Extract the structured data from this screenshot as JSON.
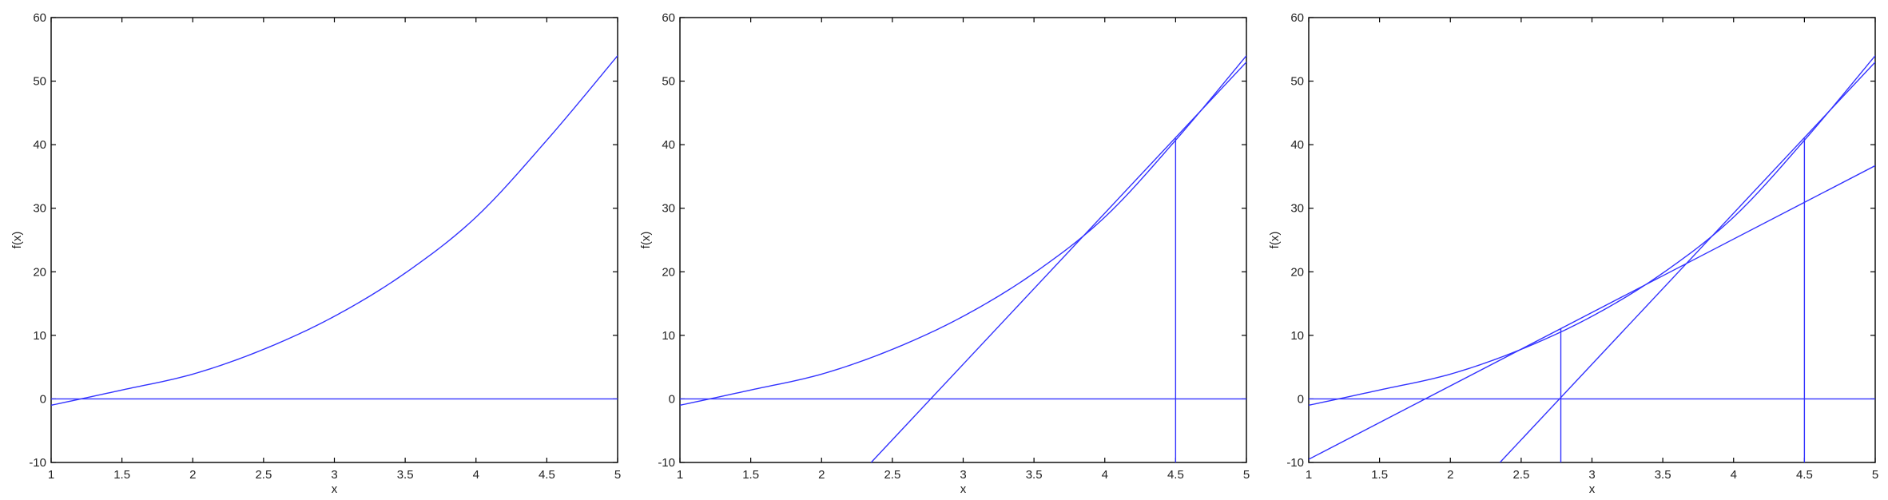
{
  "chart_data": [
    {
      "type": "line",
      "xlabel": "x",
      "ylabel": "f(x)",
      "xlim": [
        1,
        5
      ],
      "ylim": [
        -10,
        60
      ],
      "x_ticks": [
        "1",
        "1.5",
        "2",
        "2.5",
        "3",
        "3.5",
        "4",
        "4.5",
        "5"
      ],
      "y_ticks": [
        "-10",
        "0",
        "10",
        "20",
        "30",
        "40",
        "50",
        "60"
      ],
      "line_color": "#3333ff",
      "series": [
        {
          "kind": "curve",
          "x": [
            1,
            1.5,
            2,
            2.5,
            3,
            3.5,
            4,
            4.5,
            5
          ],
          "y": [
            -1,
            1.4,
            3.9,
            7.8,
            13,
            19.8,
            28.6,
            40.7,
            54
          ]
        },
        {
          "kind": "segment",
          "x": [
            1,
            5
          ],
          "y": [
            0,
            0
          ]
        }
      ]
    },
    {
      "type": "line",
      "xlabel": "x",
      "ylabel": "f(x)",
      "xlim": [
        1,
        5
      ],
      "ylim": [
        -10,
        60
      ],
      "x_ticks": [
        "1",
        "1.5",
        "2",
        "2.5",
        "3",
        "3.5",
        "4",
        "4.5",
        "5"
      ],
      "y_ticks": [
        "-10",
        "0",
        "10",
        "20",
        "30",
        "40",
        "50",
        "60"
      ],
      "line_color": "#3333ff",
      "series": [
        {
          "kind": "curve",
          "x": [
            1,
            1.5,
            2,
            2.5,
            3,
            3.5,
            4,
            4.5,
            5
          ],
          "y": [
            -1,
            1.4,
            3.9,
            7.8,
            13,
            19.8,
            28.6,
            40.7,
            54
          ]
        },
        {
          "kind": "segment",
          "x": [
            1,
            5
          ],
          "y": [
            0,
            0
          ]
        },
        {
          "kind": "segment",
          "x": [
            2.35,
            5
          ],
          "y": [
            -10,
            53
          ]
        },
        {
          "kind": "segment",
          "x": [
            4.5,
            4.5
          ],
          "y": [
            -10,
            41
          ]
        }
      ]
    },
    {
      "type": "line",
      "xlabel": "x",
      "ylabel": "f(x)",
      "xlim": [
        1,
        5
      ],
      "ylim": [
        -10,
        60
      ],
      "x_ticks": [
        "1",
        "1.5",
        "2",
        "2.5",
        "3",
        "3.5",
        "4",
        "4.5",
        "5"
      ],
      "y_ticks": [
        "-10",
        "0",
        "10",
        "20",
        "30",
        "40",
        "50",
        "60"
      ],
      "line_color": "#3333ff",
      "series": [
        {
          "kind": "curve",
          "x": [
            1,
            1.5,
            2,
            2.5,
            3,
            3.5,
            4,
            4.5,
            5
          ],
          "y": [
            -1,
            1.4,
            3.9,
            7.8,
            13,
            19.8,
            28.6,
            40.7,
            54
          ]
        },
        {
          "kind": "segment",
          "x": [
            1,
            5
          ],
          "y": [
            0,
            0
          ]
        },
        {
          "kind": "segment",
          "x": [
            2.35,
            5
          ],
          "y": [
            -10,
            53
          ]
        },
        {
          "kind": "segment",
          "x": [
            4.5,
            4.5
          ],
          "y": [
            -10,
            41
          ]
        },
        {
          "kind": "segment",
          "x": [
            1,
            5
          ],
          "y": [
            -9.5,
            36.7
          ]
        },
        {
          "kind": "segment",
          "x": [
            2.78,
            2.78
          ],
          "y": [
            -10,
            11
          ]
        }
      ]
    }
  ]
}
